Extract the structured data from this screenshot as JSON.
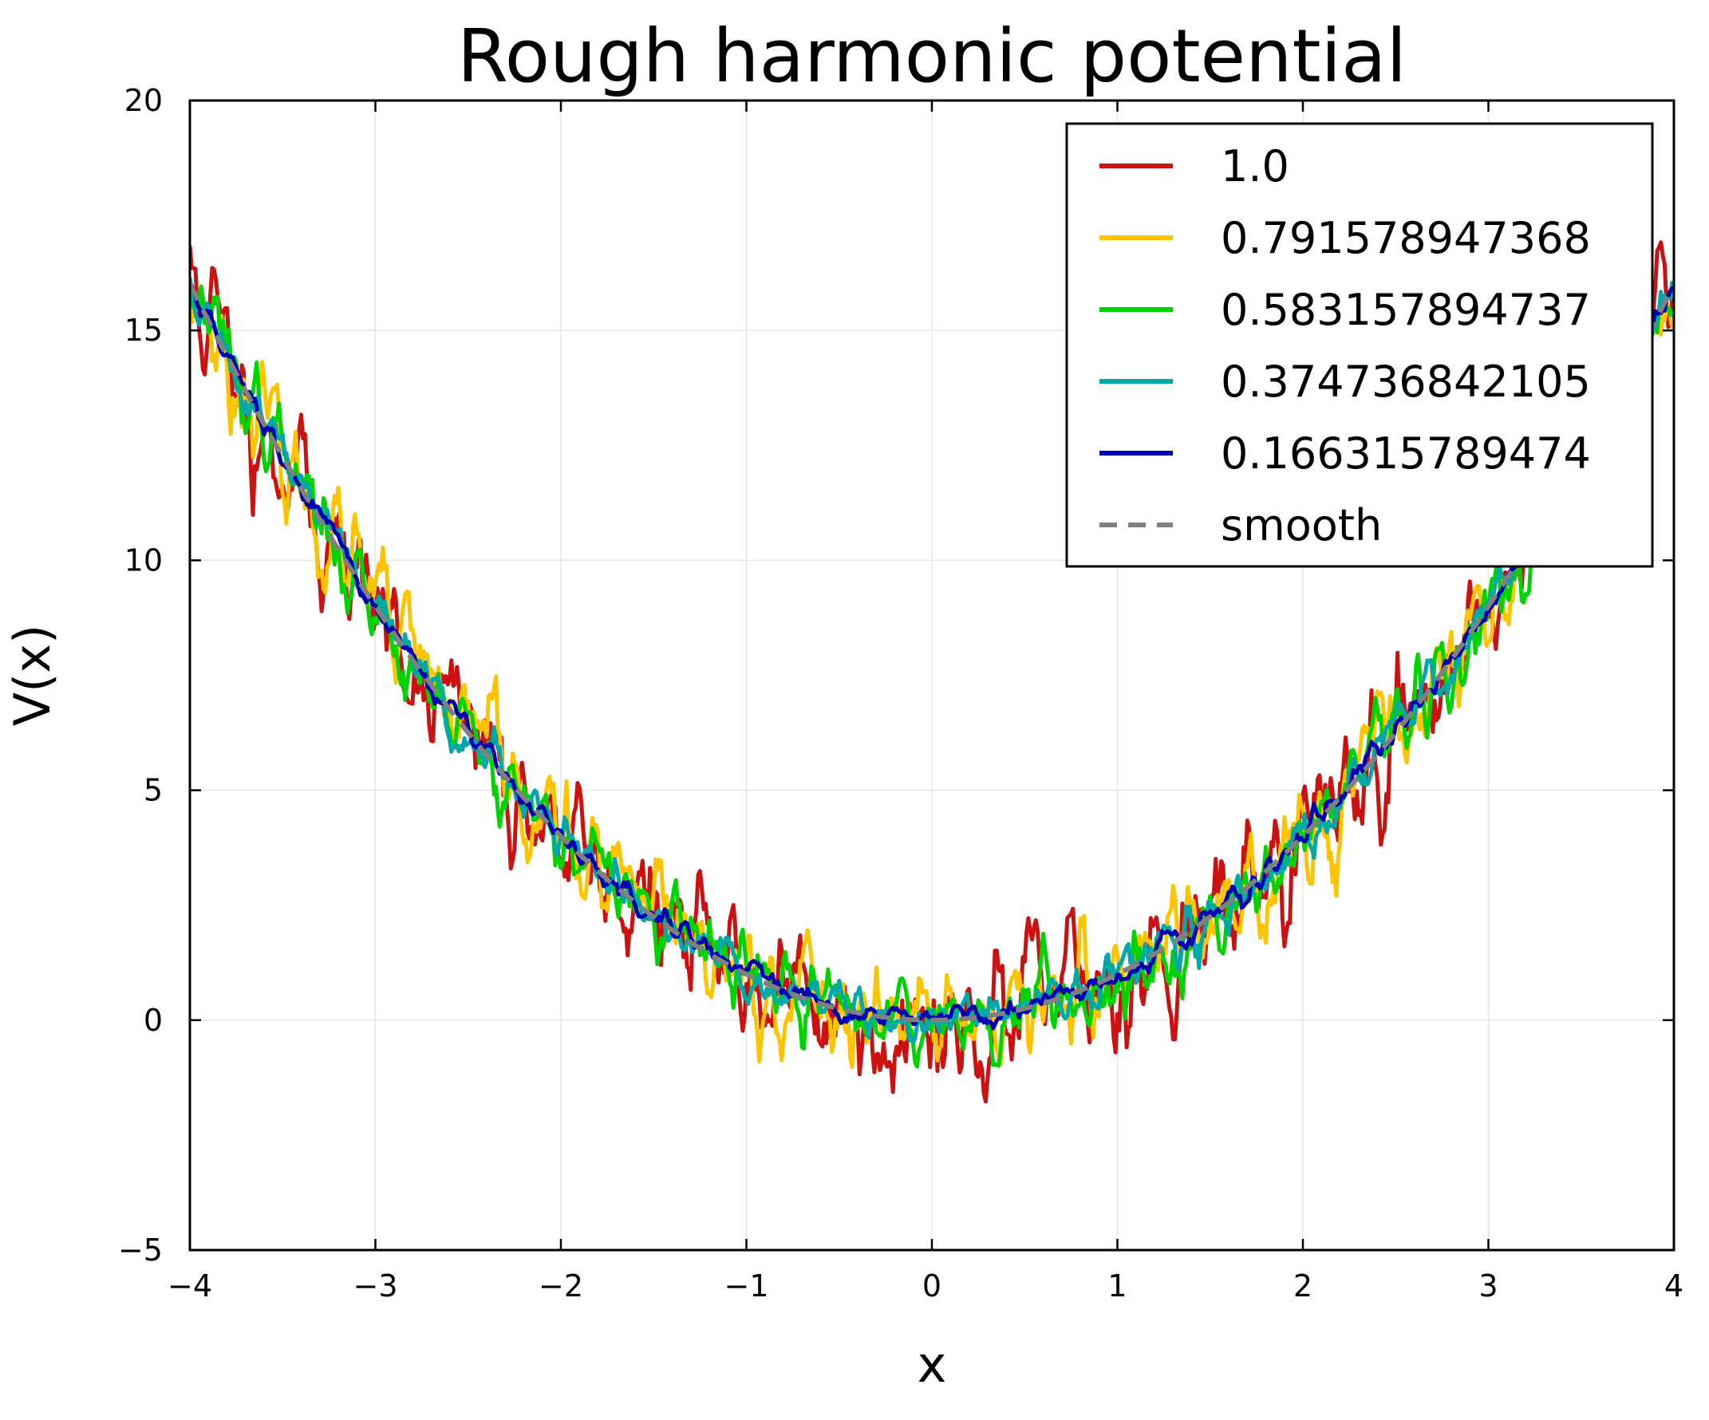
{
  "chart_data": {
    "type": "line",
    "title": "Rough harmonic potential",
    "xlabel": "x",
    "ylabel": "V(x)",
    "xlim": [
      -4,
      4
    ],
    "ylim": [
      -5,
      20
    ],
    "xticks": [
      -4,
      -3,
      -2,
      -1,
      0,
      1,
      2,
      3,
      4
    ],
    "xtick_labels": [
      "−4",
      "−3",
      "−2",
      "−1",
      "0",
      "1",
      "2",
      "3",
      "4"
    ],
    "yticks": [
      -5,
      0,
      5,
      10,
      15,
      20
    ],
    "ytick_labels": [
      "−5",
      "0",
      "5",
      "10",
      "15",
      "20"
    ],
    "grid": true,
    "legend_position": "top-right",
    "underlying_function": "V(x) = x^2",
    "series": [
      {
        "name": "1.0",
        "amplitude": 1.0,
        "color": "#cc1111",
        "style": "solid",
        "seed": 11
      },
      {
        "name": "0.791578947368",
        "amplitude": 0.791578947368,
        "color": "#ffc400",
        "style": "solid",
        "seed": 23
      },
      {
        "name": "0.583157894737",
        "amplitude": 0.583157894737,
        "color": "#00d400",
        "style": "solid",
        "seed": 37
      },
      {
        "name": "0.374736842105",
        "amplitude": 0.374736842105,
        "color": "#00a8a8",
        "style": "solid",
        "seed": 51
      },
      {
        "name": "0.166315789474",
        "amplitude": 0.166315789474,
        "color": "#0000b0",
        "style": "solid",
        "seed": 67
      },
      {
        "name": "smooth",
        "amplitude": 0,
        "color": "#808080",
        "style": "dashed",
        "seed": 0
      }
    ]
  }
}
